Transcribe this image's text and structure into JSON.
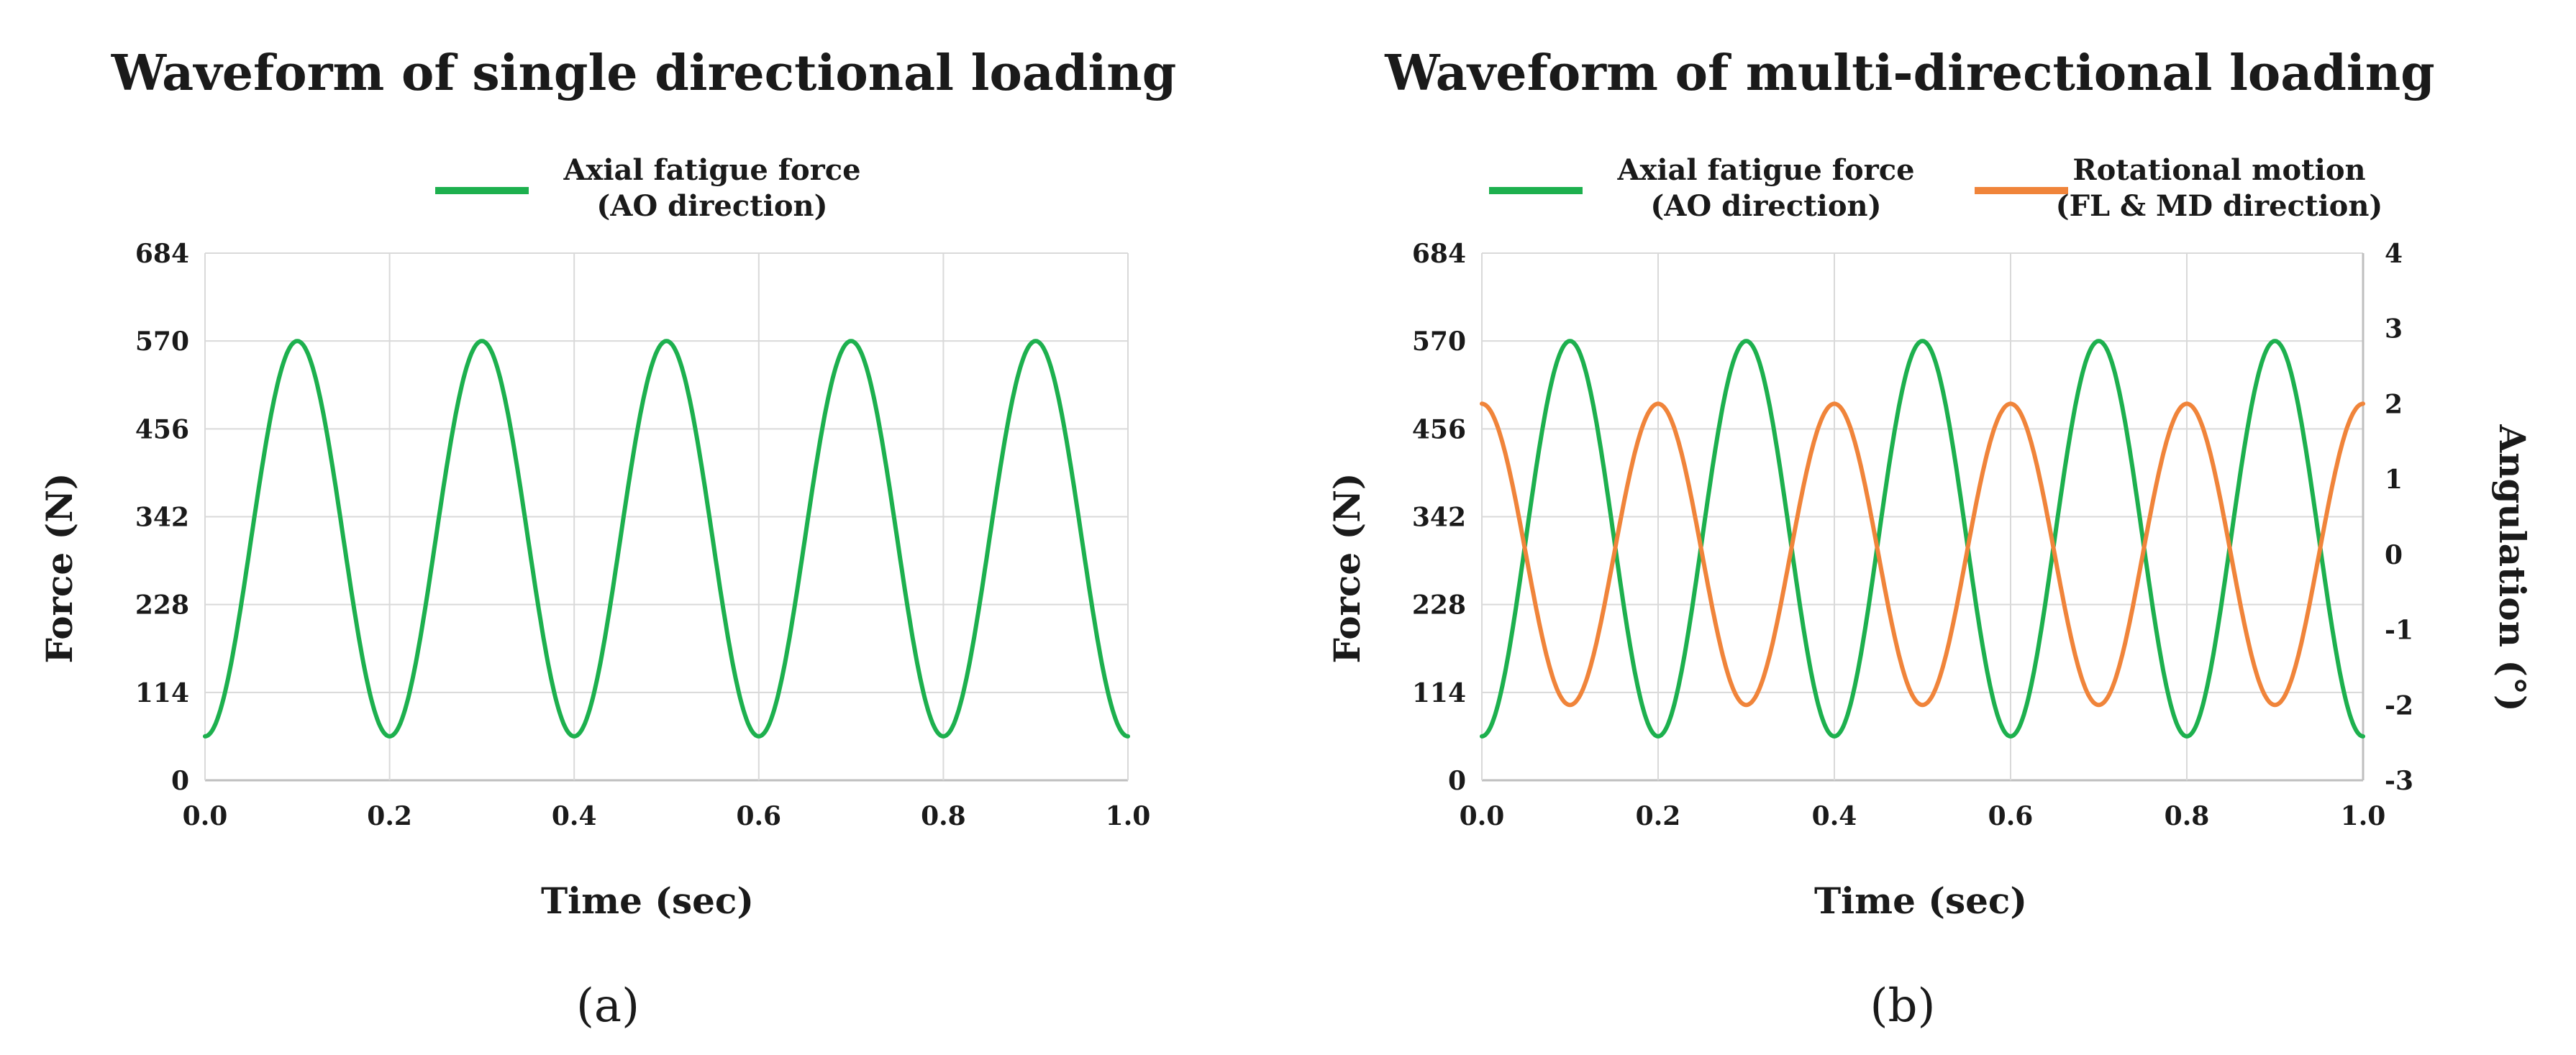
{
  "colors": {
    "axial": "#1db04e",
    "rotational": "#f0843a"
  },
  "chart_data": [
    {
      "type": "line",
      "title": "Waveform of single directional loading",
      "panel_label": "(a)",
      "xlabel": "Time (sec)",
      "ylabel": "Force (N)",
      "xlim": [
        0,
        1.0
      ],
      "ylim": [
        0,
        684
      ],
      "x_ticks": [
        "0.0",
        "0.2",
        "0.4",
        "0.6",
        "0.8",
        "1.0"
      ],
      "y_ticks": [
        "0",
        "114",
        "228",
        "342",
        "456",
        "570",
        "684"
      ],
      "series": [
        {
          "name_line1": "Axial fatigue force",
          "name_line2": "(AO direction)",
          "axis": "left",
          "color": "#1db04e",
          "function": "sine",
          "mean": 313.5,
          "amplitude": 256.5,
          "frequency_hz": 5,
          "phase": "min at 0.0, max at 0.1",
          "x_samples": [
            0.0,
            0.1,
            0.2,
            0.3,
            0.4,
            0.5,
            0.6,
            0.7,
            0.8,
            0.9,
            1.0
          ],
          "y_samples": [
            57,
            570,
            57,
            570,
            57,
            570,
            57,
            570,
            57,
            570,
            57
          ]
        }
      ]
    },
    {
      "type": "line",
      "title": "Waveform of multi-directional loading",
      "panel_label": "(b)",
      "xlabel": "Time (sec)",
      "ylabel": "Force (N)",
      "y2label": "Angulation (°)",
      "xlim": [
        0,
        1.0
      ],
      "ylim": [
        0,
        684
      ],
      "y2lim": [
        -3,
        4
      ],
      "x_ticks": [
        "0.0",
        "0.2",
        "0.4",
        "0.6",
        "0.8",
        "1.0"
      ],
      "y_ticks": [
        "0",
        "114",
        "228",
        "342",
        "456",
        "570",
        "684"
      ],
      "y2_ticks": [
        "-3",
        "-2",
        "-1",
        "0",
        "1",
        "2",
        "3",
        "4"
      ],
      "series": [
        {
          "name_line1": "Axial fatigue force",
          "name_line2": "(AO direction)",
          "axis": "left",
          "color": "#1db04e",
          "function": "sine",
          "mean": 313.5,
          "amplitude": 256.5,
          "frequency_hz": 5,
          "phase": "min at 0.0, max at 0.1",
          "x_samples": [
            0.0,
            0.1,
            0.2,
            0.3,
            0.4,
            0.5,
            0.6,
            0.7,
            0.8,
            0.9,
            1.0
          ],
          "y_samples": [
            57,
            570,
            57,
            570,
            57,
            570,
            57,
            570,
            57,
            570,
            57
          ]
        },
        {
          "name_line1": "Rotational motion",
          "name_line2": "(FL & MD direction)",
          "axis": "right",
          "color": "#f0843a",
          "function": "cosine",
          "mean": 0,
          "amplitude": 2,
          "frequency_hz": 5,
          "phase": "max at 0.0, min at 0.1",
          "x_samples": [
            0.0,
            0.1,
            0.2,
            0.3,
            0.4,
            0.5,
            0.6,
            0.7,
            0.8,
            0.9,
            1.0
          ],
          "y_samples": [
            2,
            -2,
            2,
            -2,
            2,
            -2,
            2,
            -2,
            2,
            -2,
            2
          ]
        }
      ]
    }
  ]
}
